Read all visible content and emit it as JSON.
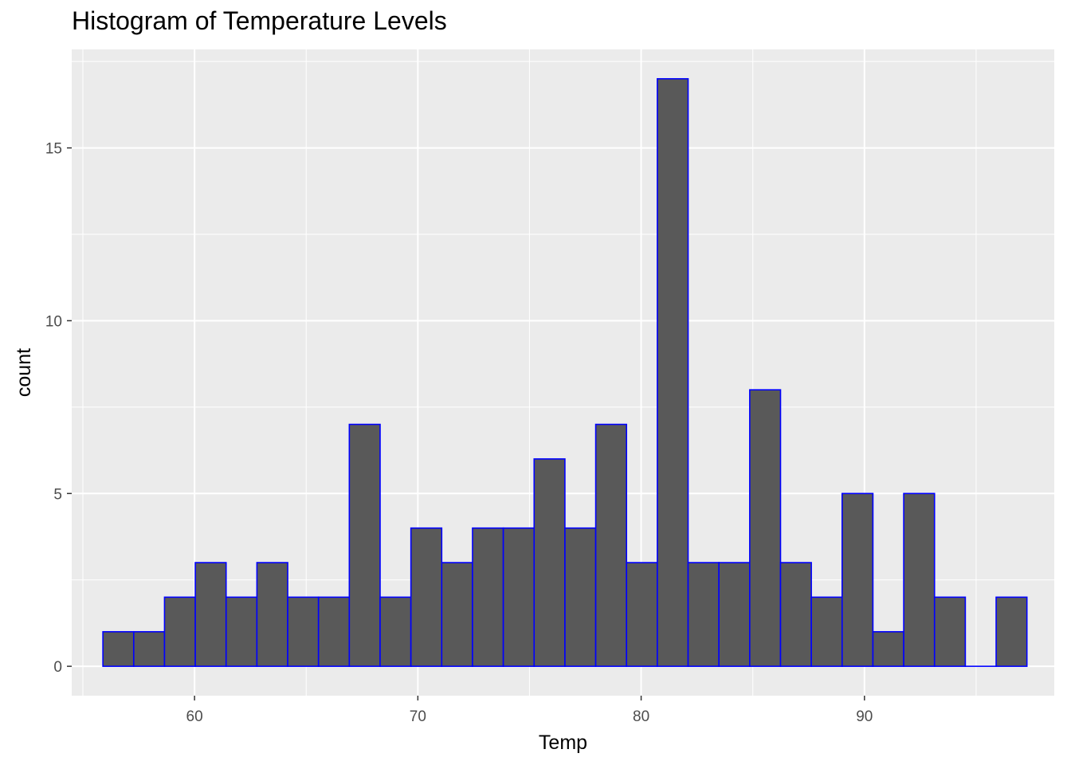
{
  "chart_data": {
    "type": "bar",
    "title": "Histogram of Temperature Levels",
    "xlabel": "Temp",
    "ylabel": "count",
    "bin_start": 55.89655,
    "bin_width": 1.37931,
    "values": [
      1,
      1,
      2,
      3,
      2,
      3,
      2,
      2,
      7,
      2,
      4,
      3,
      4,
      4,
      6,
      4,
      7,
      3,
      17,
      3,
      3,
      8,
      3,
      2,
      5,
      1,
      5,
      2,
      0,
      2
    ],
    "xlim": [
      54.5,
      98.5
    ],
    "ylim": [
      -0.85,
      17.85
    ],
    "x_ticks": [
      60,
      70,
      80,
      90
    ],
    "y_ticks": [
      0,
      5,
      10,
      15
    ],
    "grid": true,
    "colors": {
      "panel": "#EBEBEB",
      "grid": "#FFFFFF",
      "bar_fill": "#595959",
      "bar_outline": "#0000FF"
    }
  }
}
